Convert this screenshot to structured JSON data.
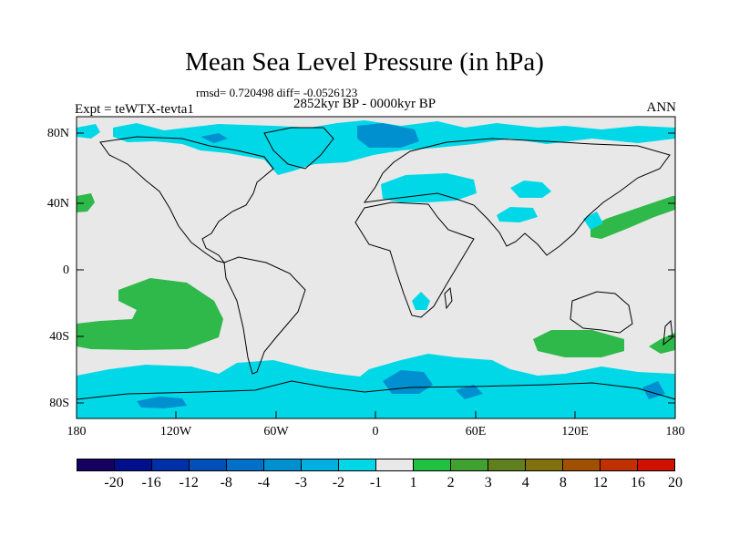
{
  "title": "Mean Sea Level Pressure (in hPa)",
  "stats": "rmsd= 0.720498 diff= -0.0526123",
  "period": "2852kyr BP - 0000kyr BP",
  "experiment": "Expt = teWTX-tevta1",
  "season": "ANN",
  "lat_labels": [
    "80N",
    "40N",
    "0",
    "40S",
    "80S"
  ],
  "lon_labels": [
    "180",
    "120W",
    "60W",
    "0",
    "60E",
    "120E",
    "180"
  ],
  "colorbar": {
    "colors": [
      "#160060",
      "#000f8c",
      "#0030a8",
      "#0050b8",
      "#0070c8",
      "#0090d0",
      "#00b0e0",
      "#00d8e8",
      "#e8e8e8",
      "#20c040",
      "#40a030",
      "#608020",
      "#807010",
      "#a05000",
      "#c03000",
      "#d01000"
    ],
    "labels": [
      "-20",
      "-16",
      "-12",
      "-8",
      "-4",
      "-3",
      "-2",
      "-1",
      "1",
      "2",
      "3",
      "4",
      "8",
      "12",
      "16",
      "20"
    ]
  },
  "map_colors": {
    "background": "#e8e8e8",
    "cyan": "#00d8e8",
    "blue": "#0090d0",
    "green": "#2eb94a"
  }
}
